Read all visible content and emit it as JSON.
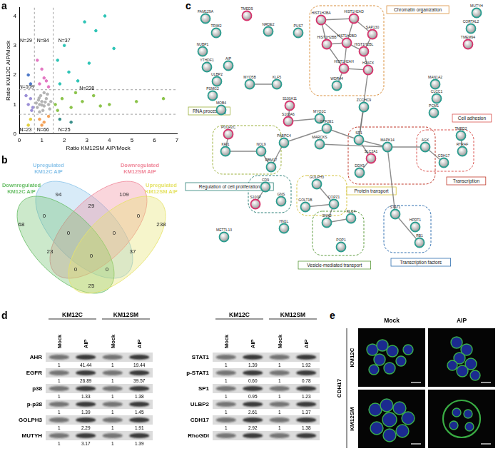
{
  "panel_labels": [
    "a",
    "b",
    "c",
    "d",
    "e"
  ],
  "chart_data": {
    "type": "scatter",
    "x_label": "Ratio KM12SM AIP/Mock",
    "y_label": "Ratio KM12C AIP/Mock",
    "xlim": [
      0,
      7
    ],
    "xticks": [
      0,
      1,
      2,
      3,
      4,
      5,
      6,
      7
    ],
    "ylim": [
      0,
      4.3
    ],
    "yticks": [
      0,
      1,
      2,
      3,
      4
    ],
    "grid": false,
    "marker": "circle",
    "series": [
      {
        "color": "#b3b3b3",
        "x": [
          0.8,
          0.9,
          1.0,
          1.1,
          1.2,
          0.95,
          1.3,
          0.85,
          1.05,
          1.25,
          0.75,
          1.4,
          1.1,
          0.9,
          1.35,
          1.0,
          1.15,
          0.88
        ],
        "values": [
          0.9,
          1.0,
          1.1,
          0.95,
          1.2,
          1.3,
          1.0,
          1.15,
          0.8,
          1.35,
          1.05,
          1.1,
          1.4,
          0.75,
          0.85,
          0.98,
          1.08,
          1.22
        ]
      },
      {
        "color": "#e377c2",
        "x": [
          0.9,
          1.1,
          1.3,
          1.0,
          1.2,
          0.8
        ],
        "values": [
          1.7,
          1.9,
          1.6,
          2.2,
          1.8,
          2.5
        ]
      },
      {
        "color": "#2ec4b6",
        "x": [
          1.8,
          2.2,
          2.6,
          3.1,
          2.0,
          2.9,
          3.4,
          1.7,
          4.2,
          3.8
        ],
        "values": [
          1.7,
          2.1,
          1.8,
          2.4,
          3.0,
          3.8,
          3.5,
          2.5,
          2.9,
          4.0
        ]
      },
      {
        "color": "#8bc34a",
        "x": [
          1.6,
          1.9,
          2.3,
          2.8,
          3.3,
          4.0,
          1.7,
          2.5,
          5.2,
          6.4,
          3.6
        ],
        "values": [
          1.0,
          1.2,
          0.9,
          1.1,
          1.3,
          1.0,
          0.8,
          1.4,
          1.1,
          1.2,
          0.95
        ]
      },
      {
        "color": "#9b8fd6",
        "x": [
          0.4,
          0.5,
          0.6,
          0.3,
          0.55
        ],
        "values": [
          1.0,
          1.2,
          0.9,
          1.3,
          0.8
        ]
      },
      {
        "color": "#4c78c8",
        "x": [
          0.5,
          0.4
        ],
        "values": [
          1.7,
          2.0
        ]
      },
      {
        "color": "#f4a259",
        "x": [
          0.9,
          1.1,
          1.3,
          1.0
        ],
        "values": [
          0.5,
          0.4,
          0.6,
          0.3
        ]
      },
      {
        "color": "#e2cf3f",
        "x": [
          0.5,
          0.4
        ],
        "values": [
          0.5,
          0.3
        ]
      },
      {
        "color": "#3a8f8a",
        "x": [
          1.8,
          2.3
        ],
        "values": [
          0.5,
          0.4
        ]
      }
    ],
    "cutoffs": {
      "x": [
        0.67,
        1.5
      ],
      "y": [
        0.67,
        1.5
      ]
    },
    "annotations": [
      {
        "text": "N=29",
        "x": 0.3,
        "y": 3.15
      },
      {
        "text": "N=84",
        "x": 1.05,
        "y": 3.15
      },
      {
        "text": "N=37",
        "x": 2.0,
        "y": 3.15
      },
      {
        "text": "N=109",
        "x": 0.32,
        "y": 1.6
      },
      {
        "text": "N=238",
        "x": 3.0,
        "y": 1.55
      },
      {
        "text": "N=23",
        "x": 0.28,
        "y": 0.15
      },
      {
        "text": "N=66",
        "x": 1.05,
        "y": 0.15
      },
      {
        "text": "N=25",
        "x": 2.0,
        "y": 0.15
      }
    ]
  },
  "venn": {
    "sets": [
      {
        "name": "Upregulated KM12C AIP",
        "color": "#8ec5ea"
      },
      {
        "name": "Downregulated KM12SM AIP",
        "color": "#f08a9c"
      },
      {
        "name": "Downregulated KM12C AIP",
        "color": "#6cbf6a"
      },
      {
        "name": "Upregulated KM12SM AIP",
        "color": "#e6e36a"
      }
    ],
    "regions": [
      {
        "sets": [
          "Upregulated KM12C AIP"
        ],
        "value": 94
      },
      {
        "sets": [
          "Downregulated KM12SM AIP"
        ],
        "value": 109
      },
      {
        "sets": [
          "Downregulated KM12C AIP"
        ],
        "value": 68
      },
      {
        "sets": [
          "Upregulated KM12SM AIP"
        ],
        "value": 238
      },
      {
        "sets": [
          "Upregulated KM12C AIP",
          "Downregulated KM12SM AIP"
        ],
        "value": 29
      },
      {
        "sets": [
          "Upregulated KM12C AIP",
          "Downregulated KM12C AIP"
        ],
        "value": 0
      },
      {
        "sets": [
          "Downregulated KM12SM AIP",
          "Upregulated KM12SM AIP"
        ],
        "value": 0
      },
      {
        "sets": [
          "Downregulated KM12SM AIP",
          "Downregulated KM12C AIP"
        ],
        "value": 23
      },
      {
        "sets": [
          "Upregulated KM12C AIP",
          "Upregulated KM12SM AIP"
        ],
        "value": 37
      },
      {
        "sets": [
          "Downregulated KM12C AIP",
          "Upregulated KM12SM AIP"
        ],
        "value": 25
      },
      {
        "sets": [
          "Upregulated KM12C AIP",
          "Downregulated KM12SM AIP",
          "Downregulated KM12C AIP"
        ],
        "value": 0
      },
      {
        "sets": [
          "Upregulated KM12C AIP",
          "Downregulated KM12SM AIP",
          "Upregulated KM12SM AIP"
        ],
        "value": 0
      },
      {
        "sets": [
          "Downregulated KM12SM AIP",
          "Downregulated KM12C AIP",
          "Upregulated KM12SM AIP"
        ],
        "value": 0
      },
      {
        "sets": [
          "Upregulated KM12C AIP",
          "Downregulated KM12C AIP",
          "Upregulated KM12SM AIP"
        ],
        "value": 0
      },
      {
        "sets": [
          "Upregulated KM12C AIP",
          "Downregulated KM12SM AIP",
          "Downregulated KM12C AIP",
          "Upregulated KM12SM AIP"
        ],
        "value": 0
      }
    ]
  },
  "network": {
    "nodes": [
      {
        "label": "FAM129A",
        "color": "#2a9d8f"
      },
      {
        "label": "TMED5",
        "color": "#d6336c"
      },
      {
        "label": "TRIM2",
        "color": "#2a9d8f"
      },
      {
        "label": "NRDE2",
        "color": "#2a9d8f"
      },
      {
        "label": "PUS7",
        "color": "#2a9d8f"
      },
      {
        "label": "MUTYH",
        "color": "#2a9d8f"
      },
      {
        "label": "CORTAL2",
        "color": "#2a9d8f"
      },
      {
        "label": "TMEM94",
        "color": "#d6336c"
      },
      {
        "label": "NUBP1",
        "color": "#2a9d8f"
      },
      {
        "label": "YTHDF1",
        "color": "#2a9d8f"
      },
      {
        "label": "AIP",
        "color": "#2a9d8f"
      },
      {
        "label": "ULBP2",
        "color": "#2a9d8f"
      },
      {
        "label": "PSMG2",
        "color": "#2a9d8f"
      },
      {
        "label": "MOB4",
        "color": "#2a9d8f"
      },
      {
        "label": "MYO5B",
        "color": "#2a9d8f"
      },
      {
        "label": "KLF5",
        "color": "#2a9d8f"
      },
      {
        "label": "S100A11",
        "color": "#d6336c"
      },
      {
        "label": "S100A6",
        "color": "#d6336c"
      },
      {
        "label": "MYO1C",
        "color": "#2a9d8f"
      },
      {
        "label": "HIST1H2BA",
        "color": "#d6336c"
      },
      {
        "label": "HIST1H2AD",
        "color": "#d6336c"
      },
      {
        "label": "SAP130",
        "color": "#d6336c"
      },
      {
        "label": "HIST1H2BB",
        "color": "#d6336c"
      },
      {
        "label": "HIST1H2BD",
        "color": "#d6336c"
      },
      {
        "label": "HIST1H2BL",
        "color": "#d6336c"
      },
      {
        "label": "HIST1H2AH",
        "color": "#d6336c"
      },
      {
        "label": "H2AFX",
        "color": "#d6336c"
      },
      {
        "label": "WDR44",
        "color": "#2a9d8f"
      },
      {
        "label": "ZCCHC9",
        "color": "#2a9d8f"
      },
      {
        "label": "MAN1A2",
        "color": "#2a9d8f"
      },
      {
        "label": "CLCC1",
        "color": "#2a9d8f"
      },
      {
        "label": "PCM1",
        "color": "#2a9d8f"
      },
      {
        "label": "POLR2C",
        "color": "#d6336c"
      },
      {
        "label": "KRI1",
        "color": "#2a9d8f"
      },
      {
        "label": "NOL9",
        "color": "#2a9d8f"
      },
      {
        "label": "RBM17",
        "color": "#2a9d8f"
      },
      {
        "label": "PABPC4",
        "color": "#2a9d8f"
      },
      {
        "label": "GTF2E1",
        "color": "#2a9d8f"
      },
      {
        "label": "MARCKS",
        "color": "#2a9d8f"
      },
      {
        "label": "SP1",
        "color": "#2a9d8f"
      },
      {
        "label": "MAPK14",
        "color": "#2a9d8f"
      },
      {
        "label": "SLC2A1",
        "color": "#d6336c"
      },
      {
        "label": "DDX5",
        "color": "#2a9d8f"
      },
      {
        "label": "AGK",
        "color": "#2a9d8f"
      },
      {
        "label": "CDH17",
        "color": "#2a9d8f"
      },
      {
        "label": "TMED2",
        "color": "#2a9d8f"
      },
      {
        "label": "RTRAF",
        "color": "#2a9d8f"
      },
      {
        "label": "STAT1",
        "color": "#2a9d8f"
      },
      {
        "label": "RB1",
        "color": "#2a9d8f"
      },
      {
        "label": "HPRT1",
        "color": "#2a9d8f"
      },
      {
        "label": "CD9",
        "color": "#2a9d8f"
      },
      {
        "label": "S100P",
        "color": "#d6336c"
      },
      {
        "label": "GNS",
        "color": "#2a9d8f"
      },
      {
        "label": "METTL13",
        "color": "#2a9d8f"
      },
      {
        "label": "HN1L",
        "color": "#2a9d8f"
      },
      {
        "label": "GOLPH3",
        "color": "#2a9d8f"
      },
      {
        "label": "GOLT1B",
        "color": "#2a9d8f"
      },
      {
        "label": "COPZ1",
        "color": "#2a9d8f"
      },
      {
        "label": "SNX2",
        "color": "#2a9d8f"
      },
      {
        "label": "KLC4",
        "color": "#2a9d8f"
      },
      {
        "label": "POP1",
        "color": "#2a9d8f"
      }
    ],
    "edges": [
      [
        "HIST1H2BA",
        "HIST1H2AD"
      ],
      [
        "HIST1H2BA",
        "HIST1H2BB"
      ],
      [
        "HIST1H2BA",
        "HIST1H2BD"
      ],
      [
        "HIST1H2AD",
        "HIST1H2BD"
      ],
      [
        "HIST1H2AD",
        "SAP130"
      ],
      [
        "HIST1H2BB",
        "HIST1H2BD"
      ],
      [
        "HIST1H2BD",
        "HIST1H2BL"
      ],
      [
        "HIST1H2BB",
        "HIST1H2AH"
      ],
      [
        "HIST1H2BD",
        "HIST1H2AH"
      ],
      [
        "HIST1H2BL",
        "H2AFX"
      ],
      [
        "HIST1H2AH",
        "H2AFX"
      ],
      [
        "HIST1H2BL",
        "SAP130"
      ],
      [
        "HIST1H2AH",
        "WDR44"
      ],
      [
        "MYO5B",
        "KLF5"
      ],
      [
        "S100A11",
        "S100A6"
      ],
      [
        "S100A6",
        "MYO1C"
      ],
      [
        "POLR2C",
        "KRI1"
      ],
      [
        "KRI1",
        "NOL9"
      ],
      [
        "NOL9",
        "RBM17"
      ],
      [
        "RBM17",
        "PABPC4"
      ],
      [
        "PABPC4",
        "GTF2E1"
      ],
      [
        "GTF2E1",
        "SP1"
      ],
      [
        "MARCKS",
        "MAPK14"
      ],
      [
        "SP1",
        "MAPK14"
      ],
      [
        "SP1",
        "SLC2A1"
      ],
      [
        "SLC2A1",
        "DDX5"
      ],
      [
        "MAPK14",
        "AGK"
      ],
      [
        "MAPK14",
        "STAT1"
      ],
      [
        "STAT1",
        "RB1"
      ],
      [
        "AGK",
        "CDH17"
      ],
      [
        "TMED2",
        "RTRAF"
      ],
      [
        "CD9",
        "S100P"
      ],
      [
        "GOLPH3",
        "COPZ1"
      ],
      [
        "GOLT1B",
        "COPZ1"
      ],
      [
        "COPZ1",
        "SNX2"
      ],
      [
        "SNX2",
        "KLC4"
      ],
      [
        "H2AFX",
        "SP1"
      ],
      [
        "ZCCHC9",
        "SP1"
      ]
    ],
    "groups": [
      {
        "label": "Chromatin organization",
        "color": "#d98e3a"
      },
      {
        "label": "RNA processing",
        "color": "#9bb03a"
      },
      {
        "label": "Cell adhesion",
        "color": "#d9534f"
      },
      {
        "label": "Transcription",
        "color": "#c0392b"
      },
      {
        "label": "Regulation of cell proliferation",
        "color": "#2a7f76"
      },
      {
        "label": "Protein transport",
        "color": "#d4c23a"
      },
      {
        "label": "Vesicle-mediated transport",
        "color": "#5a9a3a"
      },
      {
        "label": "Transcription factors",
        "color": "#2f6fb0"
      }
    ]
  },
  "blots": {
    "cell_lines": [
      "KM12C",
      "KM12SM"
    ],
    "conditions": [
      "Mock",
      "AIP"
    ],
    "left": [
      {
        "protein": "AHR",
        "values": [
          "1",
          "41.44",
          "1",
          "19.44"
        ]
      },
      {
        "protein": "EGFR",
        "values": [
          "1",
          "26.89",
          "1",
          "39.57"
        ]
      },
      {
        "protein": "p38",
        "values": [
          "1",
          "1.33",
          "1",
          "1.38"
        ]
      },
      {
        "protein": "p-p38",
        "values": [
          "1",
          "1.39",
          "1",
          "1.45"
        ]
      },
      {
        "protein": "GOLPH3",
        "values": [
          "1",
          "2.29",
          "1",
          "1.91"
        ]
      },
      {
        "protein": "MUTYH",
        "values": [
          "1",
          "3.17",
          "1",
          "1.39"
        ]
      }
    ],
    "right": [
      {
        "protein": "STAT1",
        "values": [
          "1",
          "1.39",
          "1",
          "1.92"
        ]
      },
      {
        "protein": "p-STAT1",
        "values": [
          "1",
          "0.60",
          "1",
          "0.78"
        ]
      },
      {
        "protein": "SP1",
        "values": [
          "1",
          "0.95",
          "1",
          "1.23"
        ]
      },
      {
        "protein": "ULBP2",
        "values": [
          "1",
          "2.61",
          "1",
          "1.37"
        ]
      },
      {
        "protein": "CDH17",
        "values": [
          "1",
          "2.92",
          "1",
          "1.38"
        ]
      },
      {
        "protein": "RhoGDI",
        "values": []
      }
    ]
  },
  "microscopy": {
    "columns": [
      "Mock",
      "AIP"
    ],
    "rows": [
      "KM12C",
      "KM12SM"
    ],
    "stain": "CDH17"
  }
}
